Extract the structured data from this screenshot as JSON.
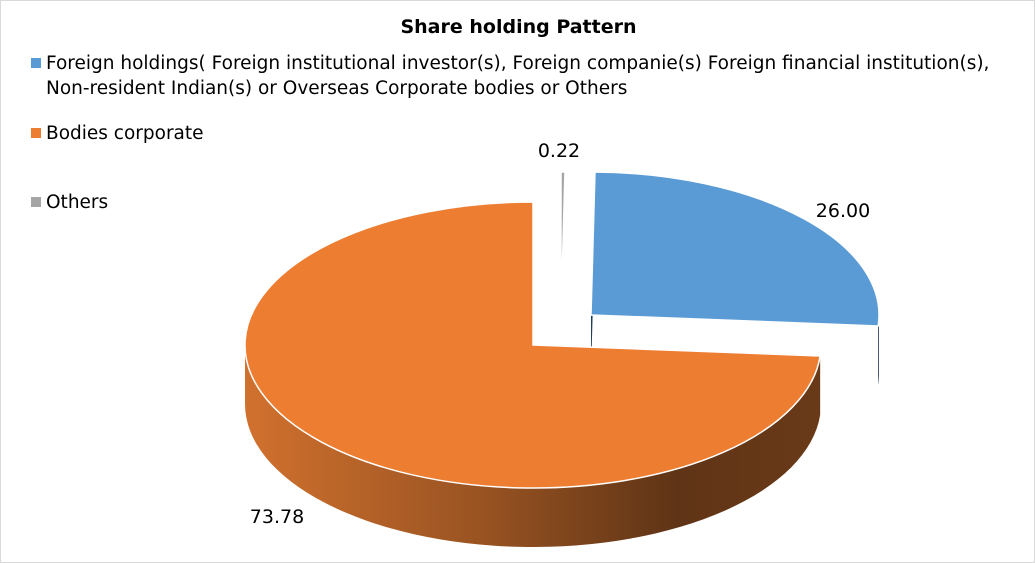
{
  "chart_data": {
    "type": "pie",
    "title": "Share holding Pattern",
    "legend_position": "top-left",
    "series": [
      {
        "name": "Foreign holdings( Foreign institutional investor(s), Foreign companie(s) Foreign financial institution(s), Non-resident Indian(s) or Overseas Corporate bodies or Others",
        "value": 26.0,
        "label": "26.00",
        "color": "#5b9bd5"
      },
      {
        "name": "Bodies corporate",
        "value": 73.78,
        "label": "73.78",
        "color": "#ed7d31"
      },
      {
        "name": "Others",
        "value": 0.22,
        "label": "0.22",
        "color": "#a5a5a5"
      }
    ]
  }
}
